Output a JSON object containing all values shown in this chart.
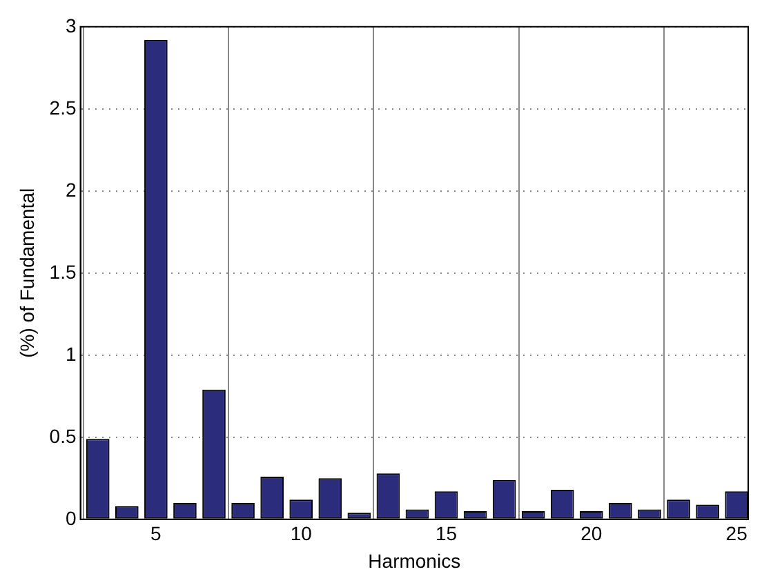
{
  "chart_data": {
    "type": "bar",
    "xlabel": "Harmonics",
    "ylabel": "(%) of Fundamental",
    "x": [
      3,
      4,
      5,
      6,
      7,
      8,
      9,
      10,
      11,
      12,
      13,
      14,
      15,
      16,
      17,
      18,
      19,
      20,
      21,
      22,
      23,
      24,
      25
    ],
    "values": [
      0.49,
      0.08,
      2.92,
      0.1,
      0.79,
      0.1,
      0.26,
      0.12,
      0.25,
      0.04,
      0.28,
      0.06,
      0.17,
      0.05,
      0.24,
      0.05,
      0.18,
      0.05,
      0.1,
      0.06,
      0.12,
      0.09,
      0.17
    ],
    "color": "#2b2d7c",
    "xlim": [
      2.4,
      25.4
    ],
    "xticks": [
      5,
      10,
      15,
      20,
      25
    ],
    "ylim": [
      0,
      3
    ],
    "yticks": [
      0,
      0.5,
      1,
      1.5,
      2,
      2.5,
      3
    ],
    "grid": true,
    "legend": false
  }
}
